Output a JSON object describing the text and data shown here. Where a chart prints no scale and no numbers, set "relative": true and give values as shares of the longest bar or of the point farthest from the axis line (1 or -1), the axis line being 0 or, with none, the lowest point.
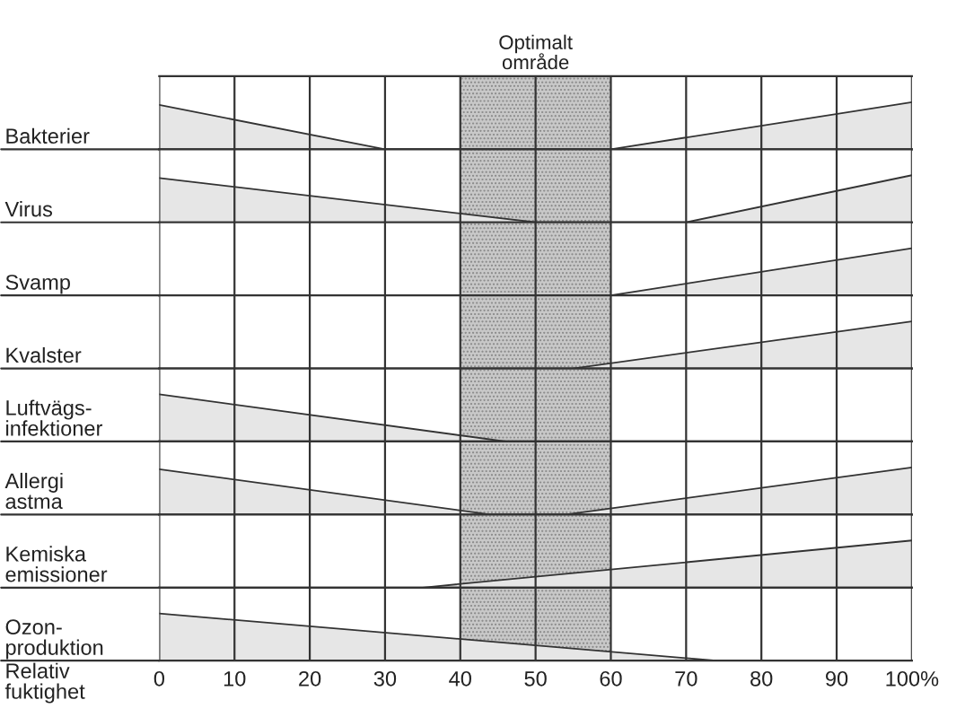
{
  "chart_data": [
    {
      "type": "area",
      "relative": true,
      "ylabel": "Bakterier",
      "xlim": [
        0,
        100
      ],
      "xticks": [
        0,
        10,
        20,
        30,
        40,
        50,
        60,
        70,
        80,
        90,
        100
      ],
      "tick_labels": false,
      "grid": "x",
      "bands": [
        {
          "axis": "x",
          "from": 40,
          "to": 60,
          "label": "Optimalt\nområde",
          "color": "#c8c8c8"
        }
      ],
      "series": [
        {
          "color": "#e6e6e6",
          "x": [
            0,
            30,
            60,
            100
          ],
          "values": [
            0.94,
            0,
            0,
            1
          ]
        }
      ]
    },
    {
      "type": "area",
      "relative": true,
      "ylabel": "Virus",
      "xlim": [
        0,
        100
      ],
      "xticks": [
        0,
        10,
        20,
        30,
        40,
        50,
        60,
        70,
        80,
        90,
        100
      ],
      "tick_labels": false,
      "grid": "x",
      "bands": [
        {
          "axis": "x",
          "from": 40,
          "to": 60,
          "color": "#c8c8c8"
        }
      ],
      "series": [
        {
          "color": "#e6e6e6",
          "x": [
            0,
            50,
            70,
            100
          ],
          "values": [
            0.94,
            0,
            0,
            1
          ]
        }
      ]
    },
    {
      "type": "area",
      "relative": true,
      "ylabel": "Svamp",
      "xlim": [
        0,
        100
      ],
      "xticks": [
        0,
        10,
        20,
        30,
        40,
        50,
        60,
        70,
        80,
        90,
        100
      ],
      "tick_labels": false,
      "grid": "x",
      "bands": [
        {
          "axis": "x",
          "from": 40,
          "to": 60,
          "color": "#c8c8c8"
        }
      ],
      "series": [
        {
          "color": "#e6e6e6",
          "x": [
            60,
            100
          ],
          "values": [
            0,
            1
          ]
        }
      ]
    },
    {
      "type": "area",
      "relative": true,
      "ylabel": "Kvalster",
      "xlim": [
        0,
        100
      ],
      "xticks": [
        0,
        10,
        20,
        30,
        40,
        50,
        60,
        70,
        80,
        90,
        100
      ],
      "tick_labels": false,
      "grid": "x",
      "bands": [
        {
          "axis": "x",
          "from": 40,
          "to": 60,
          "color": "#c8c8c8"
        }
      ],
      "series": [
        {
          "color": "#e6e6e6",
          "x": [
            55,
            100
          ],
          "values": [
            0,
            1
          ]
        }
      ]
    },
    {
      "type": "area",
      "relative": true,
      "ylabel": "Luftvägs-\ninfektioner",
      "xlim": [
        0,
        100
      ],
      "xticks": [
        0,
        10,
        20,
        30,
        40,
        50,
        60,
        70,
        80,
        90,
        100
      ],
      "tick_labels": false,
      "grid": "x",
      "bands": [
        {
          "axis": "x",
          "from": 40,
          "to": 60,
          "color": "#c8c8c8"
        }
      ],
      "series": [
        {
          "color": "#e6e6e6",
          "x": [
            0,
            46
          ],
          "values": [
            1,
            0
          ]
        }
      ]
    },
    {
      "type": "area",
      "relative": true,
      "ylabel": "Allergi\nastma",
      "xlim": [
        0,
        100
      ],
      "xticks": [
        0,
        10,
        20,
        30,
        40,
        50,
        60,
        70,
        80,
        90,
        100
      ],
      "tick_labels": false,
      "grid": "x",
      "bands": [
        {
          "axis": "x",
          "from": 40,
          "to": 60,
          "color": "#c8c8c8"
        }
      ],
      "series": [
        {
          "color": "#e6e6e6",
          "x": [
            0,
            44,
            54,
            100
          ],
          "values": [
            0.96,
            0,
            0,
            1
          ]
        }
      ]
    },
    {
      "type": "area",
      "relative": true,
      "ylabel": "Kemiska\nemissioner",
      "xlim": [
        0,
        100
      ],
      "xticks": [
        0,
        10,
        20,
        30,
        40,
        50,
        60,
        70,
        80,
        90,
        100
      ],
      "tick_labels": false,
      "grid": "x",
      "bands": [
        {
          "axis": "x",
          "from": 40,
          "to": 60,
          "color": "#c8c8c8"
        }
      ],
      "series": [
        {
          "color": "#e6e6e6",
          "x": [
            35,
            100
          ],
          "values": [
            0,
            1
          ]
        }
      ]
    },
    {
      "type": "area",
      "relative": true,
      "ylabel": "Ozon-\nproduktion",
      "xlabel": "Relativ\nfuktighet",
      "xlim": [
        0,
        100
      ],
      "xticks": [
        0,
        10,
        20,
        30,
        40,
        50,
        60,
        70,
        80,
        90,
        {
          "value": 100,
          "label": "100%"
        }
      ],
      "tick_labels": "x",
      "grid": "x",
      "bands": [
        {
          "axis": "x",
          "from": 40,
          "to": 60,
          "color": "#c8c8c8"
        }
      ],
      "series": [
        {
          "color": "#e6e6e6",
          "x": [
            0,
            74
          ],
          "values": [
            1,
            0
          ]
        }
      ]
    }
  ]
}
